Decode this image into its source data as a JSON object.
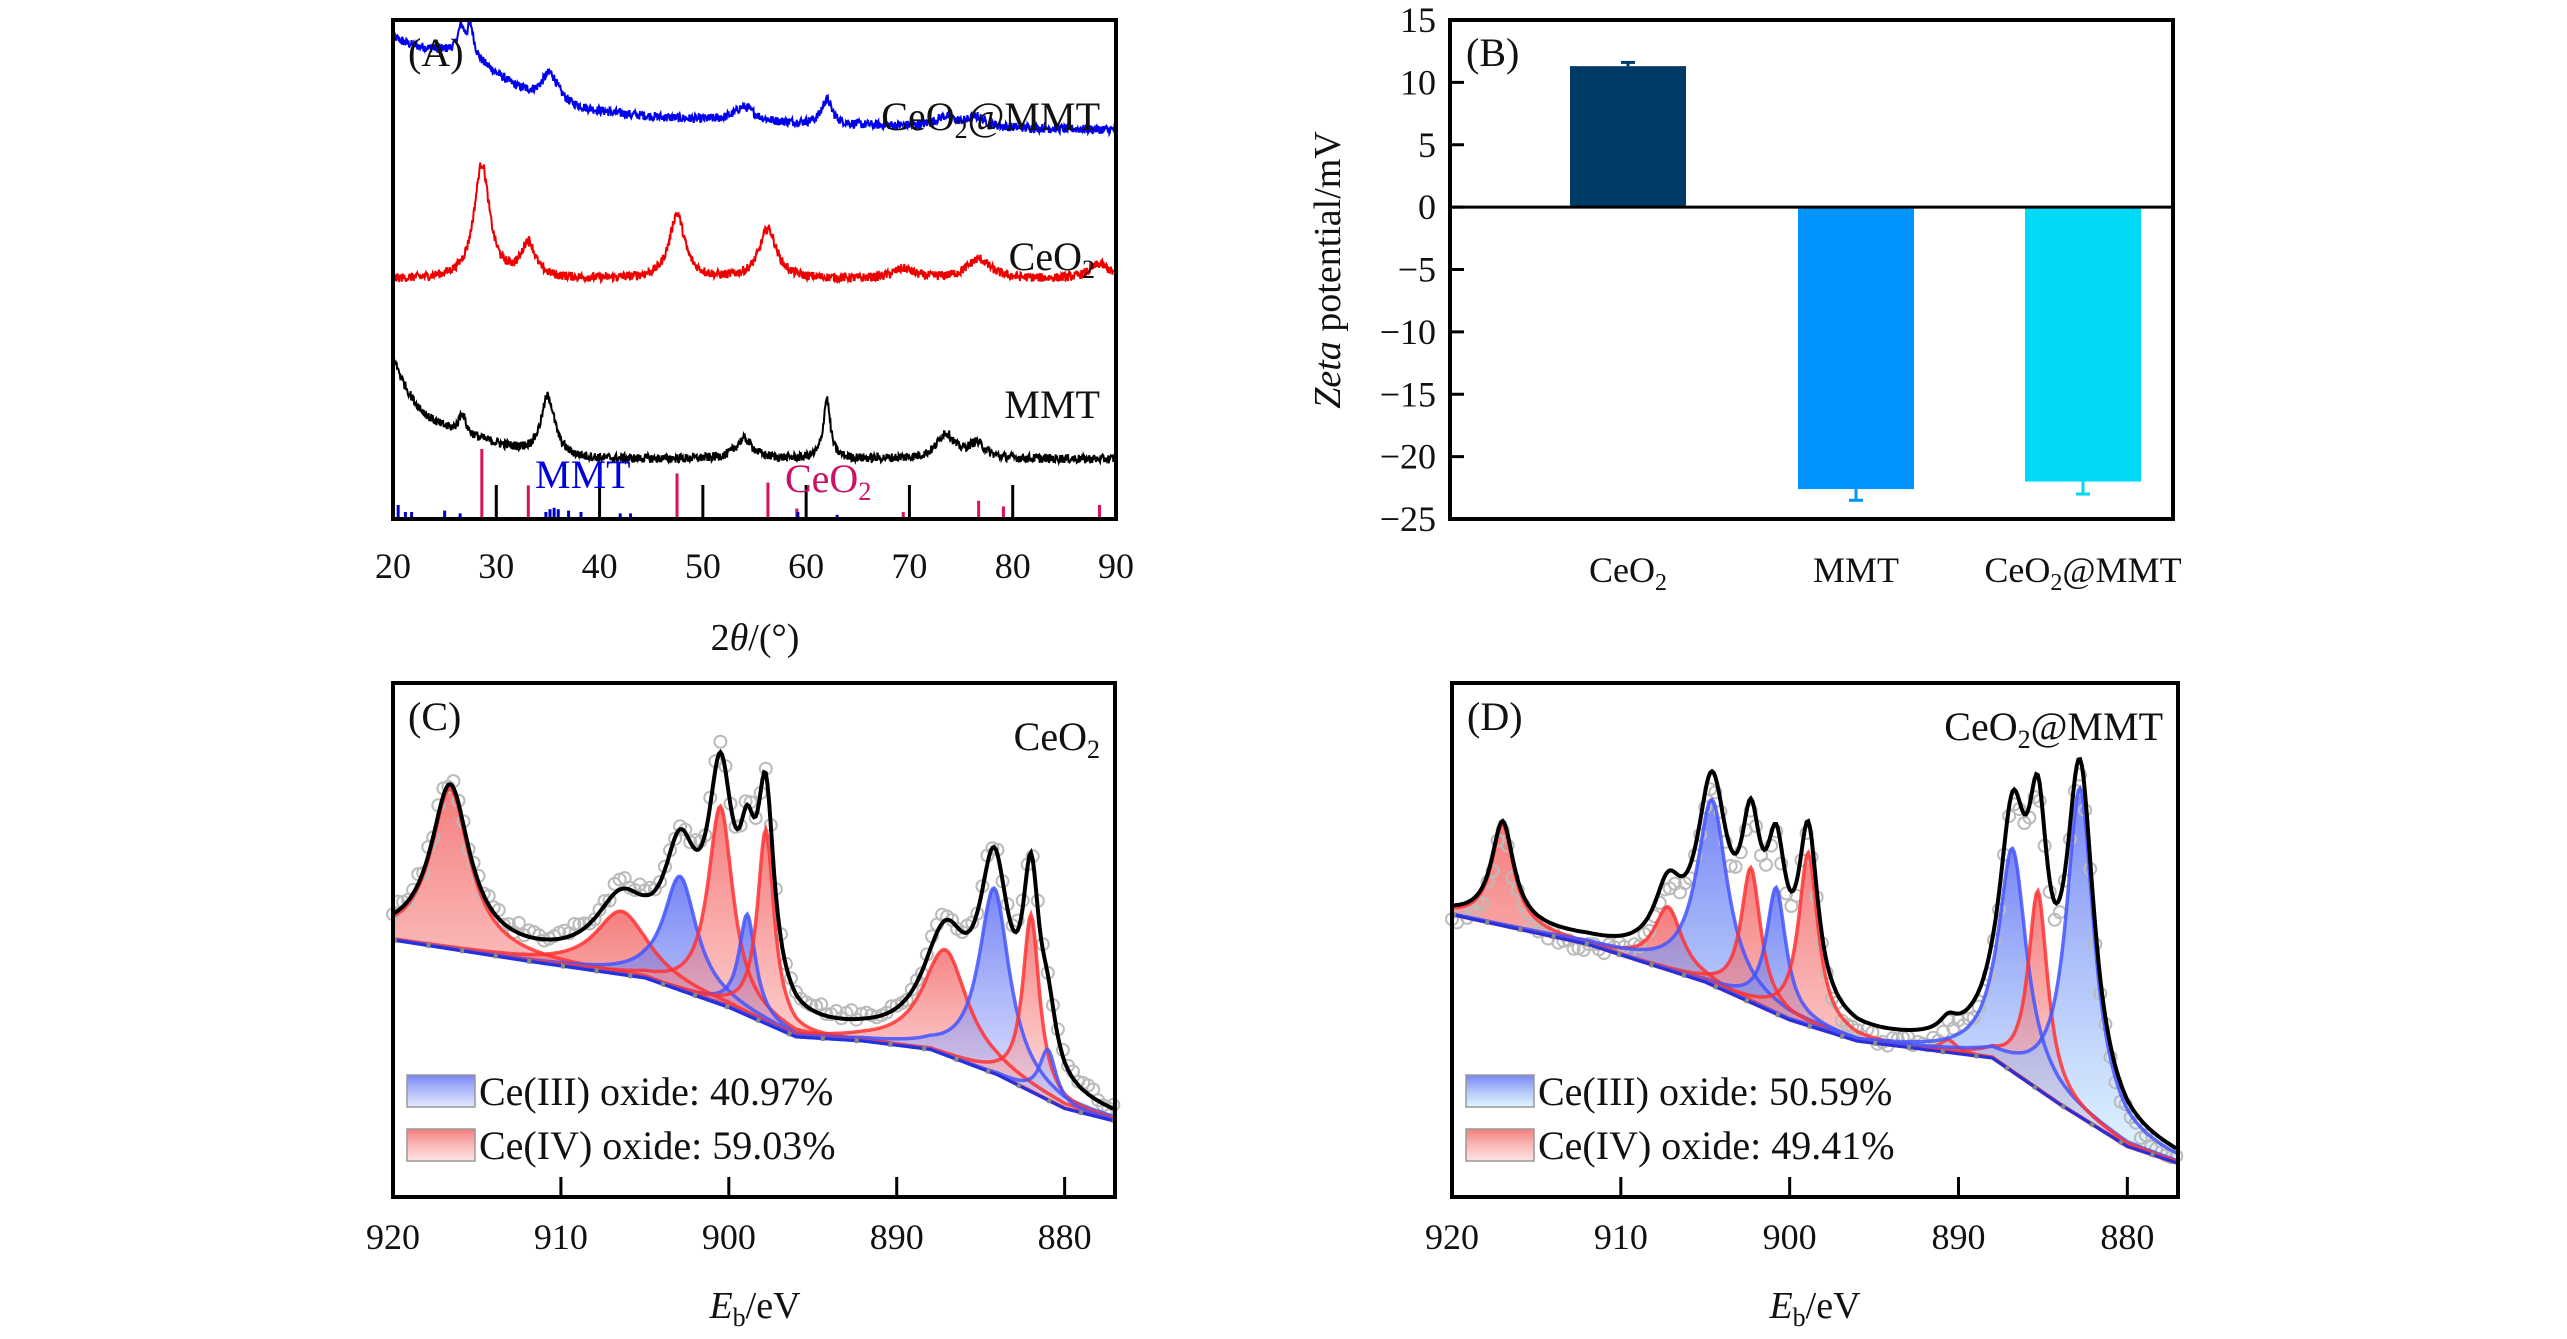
{
  "figure": {
    "panels": [
      "(A)",
      "(B)",
      "(C)",
      "(D)"
    ]
  },
  "chart_data": [
    {
      "id": "A",
      "type": "line",
      "panel_label": "(A)",
      "title": "",
      "xlabel": "2θ/(°)",
      "xlabel_parts": {
        "pre": "2",
        "italic": "θ",
        "post": "/(°)"
      },
      "ylabel": "",
      "xlim": [
        20,
        90
      ],
      "xticks": [
        20,
        30,
        40,
        50,
        60,
        70,
        80,
        90
      ],
      "grid": false,
      "series": [
        {
          "name": "CeO2@MMT",
          "label_main": "CeO",
          "label_sub": "2",
          "label_tail": "@MMT",
          "color": "#0000ee",
          "offset": 0.8,
          "peaks": [
            {
              "x": 26.6,
              "h": 0.05,
              "w": 0.4
            },
            {
              "x": 27.5,
              "h": 0.06,
              "w": 0.4
            },
            {
              "x": 35.2,
              "h": 0.06,
              "w": 1.0
            },
            {
              "x": 54.0,
              "h": 0.03,
              "w": 1.2
            },
            {
              "x": 62.0,
              "h": 0.05,
              "w": 0.6
            },
            {
              "x": 73.5,
              "h": 0.02,
              "w": 1.2
            },
            {
              "x": 76.5,
              "h": 0.02,
              "w": 1.0
            }
          ],
          "background": {
            "start": 0.16,
            "decay": 10
          }
        },
        {
          "name": "CeO2",
          "label_main": "CeO",
          "label_sub": "2",
          "label_tail": "",
          "color": "#ee0000",
          "offset": 0.48,
          "peaks": [
            {
              "x": 28.6,
              "h": 0.23,
              "w": 0.9
            },
            {
              "x": 33.1,
              "h": 0.07,
              "w": 0.8
            },
            {
              "x": 47.5,
              "h": 0.13,
              "w": 0.9
            },
            {
              "x": 56.3,
              "h": 0.1,
              "w": 1.0
            },
            {
              "x": 69.4,
              "h": 0.02,
              "w": 1.2
            },
            {
              "x": 76.7,
              "h": 0.04,
              "w": 1.4
            },
            {
              "x": 88.4,
              "h": 0.03,
              "w": 1.2
            }
          ],
          "background": {
            "start": 0.0,
            "decay": 10
          }
        },
        {
          "name": "MMT",
          "label_main": "MMT",
          "label_sub": "",
          "label_tail": "",
          "color": "#000000",
          "offset": 0.12,
          "peaks": [
            {
              "x": 26.7,
              "h": 0.04,
              "w": 0.4
            },
            {
              "x": 35.0,
              "h": 0.12,
              "w": 0.8
            },
            {
              "x": 54.0,
              "h": 0.04,
              "w": 1.0
            },
            {
              "x": 62.0,
              "h": 0.12,
              "w": 0.4
            },
            {
              "x": 73.5,
              "h": 0.05,
              "w": 1.0
            },
            {
              "x": 76.5,
              "h": 0.03,
              "w": 1.0
            }
          ],
          "background": {
            "start": 0.2,
            "decay": 3
          }
        }
      ],
      "reference_sticks": {
        "MMT": {
          "label": "MMT",
          "color": "#0000cc",
          "x": [
            20.5,
            21.2,
            21.8,
            25.0,
            26.5,
            34.8,
            35.2,
            35.6,
            36.0,
            37.0,
            38.2,
            42.0,
            43.0,
            59.2,
            63.0
          ],
          "h": [
            0.2,
            0.1,
            0.1,
            0.12,
            0.08,
            0.1,
            0.14,
            0.16,
            0.14,
            0.12,
            0.1,
            0.08,
            0.08,
            0.1,
            0.06
          ]
        },
        "CeO2": {
          "label_main": "CeO",
          "label_sub": "2",
          "color": "#dd1155",
          "x": [
            28.6,
            33.1,
            47.5,
            56.3,
            59.1,
            69.4,
            76.7,
            79.1,
            88.4
          ],
          "h": [
            1.0,
            0.48,
            0.65,
            0.52,
            0.15,
            0.1,
            0.26,
            0.18,
            0.2
          ]
        },
        "ticks_black": [
          30,
          40,
          50,
          60,
          70,
          80
        ]
      }
    },
    {
      "id": "B",
      "type": "bar",
      "panel_label": "(B)",
      "title": "",
      "xlabel": "",
      "ylabel": "Zeta potential/mV",
      "ylabel_parts": {
        "italic": "Zeta",
        "post": " potential/mV"
      },
      "ylim": [
        -25,
        15
      ],
      "yticks": [
        15,
        10,
        5,
        0,
        -5,
        -10,
        -15,
        -20,
        -25
      ],
      "ytick_labels": [
        "15",
        "10",
        "5",
        "0",
        "−5",
        "−10",
        "−15",
        "−20",
        "−25"
      ],
      "grid": false,
      "categories": [
        {
          "main": "CeO",
          "sub": "2",
          "tail": ""
        },
        {
          "main": "MMT",
          "sub": "",
          "tail": ""
        },
        {
          "main": "CeO",
          "sub": "2",
          "tail": "@MMT"
        }
      ],
      "category_names": [
        "CeO2",
        "MMT",
        "CeO2@MMT"
      ],
      "values": [
        11.3,
        -22.6,
        -22.0
      ],
      "errors": [
        0.3,
        0.9,
        1.0
      ],
      "colors": [
        "#003a66",
        "#0095ff",
        "#00daf6"
      ]
    },
    {
      "id": "C",
      "type": "area",
      "panel_label": "(C)",
      "sample_label": {
        "main": "CeO",
        "sub": "2",
        "tail": ""
      },
      "xlabel": "Eb/eV",
      "xlabel_parts": {
        "italic": "E",
        "sub": "b",
        "post": "/eV"
      },
      "xlim": [
        920,
        877
      ],
      "xticks": [
        920,
        910,
        900,
        890,
        880
      ],
      "grid": false,
      "baseline": [
        [
          920,
          0.36
        ],
        [
          912,
          0.31
        ],
        [
          905,
          0.27
        ],
        [
          900,
          0.2
        ],
        [
          896,
          0.13
        ],
        [
          892,
          0.12
        ],
        [
          888,
          0.1
        ],
        [
          884,
          0.04
        ],
        [
          880,
          -0.04
        ],
        [
          877,
          -0.07
        ]
      ],
      "components": [
        {
          "type": "Ce(IV)",
          "center": 916.6,
          "height": 0.38,
          "width": 1.4
        },
        {
          "type": "Ce(IV)",
          "center": 906.4,
          "height": 0.15,
          "width": 1.9
        },
        {
          "type": "Ce(III)",
          "center": 902.9,
          "height": 0.27,
          "width": 1.2
        },
        {
          "type": "Ce(IV)",
          "center": 900.5,
          "height": 0.47,
          "width": 0.9
        },
        {
          "type": "Ce(III)",
          "center": 898.9,
          "height": 0.24,
          "width": 0.6
        },
        {
          "type": "Ce(IV)",
          "center": 897.8,
          "height": 0.46,
          "width": 0.6
        },
        {
          "type": "Ce(IV)",
          "center": 887.1,
          "height": 0.25,
          "width": 1.6
        },
        {
          "type": "Ce(III)",
          "center": 884.2,
          "height": 0.44,
          "width": 1.1
        },
        {
          "type": "Ce(IV)",
          "center": 882.0,
          "height": 0.42,
          "width": 0.6
        },
        {
          "type": "Ce(III)",
          "center": 881.0,
          "height": 0.12,
          "width": 0.6
        }
      ],
      "legend": [
        {
          "label": "Ce(III) oxide: 40.97%",
          "color": "#4455ff",
          "fill_top": "#6a78f4",
          "fill_bottom": "#dde4ff"
        },
        {
          "label": "Ce(IV) oxide: 59.03%",
          "color": "#ff3333",
          "fill_top": "#f26a6a",
          "fill_bottom": "#ffe0e0"
        }
      ],
      "legend_position": "bottom-left",
      "percentages": {
        "Ce(III)": 40.97,
        "Ce(IV)": 59.03
      }
    },
    {
      "id": "D",
      "type": "area",
      "panel_label": "(D)",
      "sample_label": {
        "main": "CeO",
        "sub": "2",
        "tail": "@MMT"
      },
      "xlabel": "Eb/eV",
      "xlabel_parts": {
        "italic": "E",
        "sub": "b",
        "post": "/eV"
      },
      "xlim": [
        920,
        877
      ],
      "xticks": [
        920,
        910,
        900,
        890,
        880
      ],
      "grid": false,
      "baseline": [
        [
          920,
          0.42
        ],
        [
          912,
          0.35
        ],
        [
          905,
          0.26
        ],
        [
          900,
          0.17
        ],
        [
          896,
          0.12
        ],
        [
          892,
          0.1
        ],
        [
          888,
          0.08
        ],
        [
          884,
          -0.03
        ],
        [
          880,
          -0.13
        ],
        [
          877,
          -0.17
        ]
      ],
      "components": [
        {
          "type": "Ce(IV)",
          "center": 917.0,
          "height": 0.24,
          "width": 0.8
        },
        {
          "type": "Ce(IV)",
          "center": 907.2,
          "height": 0.15,
          "width": 1.0
        },
        {
          "type": "Ce(III)",
          "center": 904.6,
          "height": 0.44,
          "width": 1.1
        },
        {
          "type": "Ce(IV)",
          "center": 902.3,
          "height": 0.32,
          "width": 0.7
        },
        {
          "type": "Ce(III)",
          "center": 900.8,
          "height": 0.3,
          "width": 0.7
        },
        {
          "type": "Ce(IV)",
          "center": 898.9,
          "height": 0.41,
          "width": 0.7
        },
        {
          "type": "Ce(IV)",
          "center": 890.6,
          "height": 0.03,
          "width": 0.6
        },
        {
          "type": "Ce(III)",
          "center": 886.8,
          "height": 0.53,
          "width": 1.0
        },
        {
          "type": "Ce(IV)",
          "center": 885.3,
          "height": 0.47,
          "width": 0.7
        },
        {
          "type": "Ce(III)",
          "center": 882.8,
          "height": 0.78,
          "width": 1.0
        }
      ],
      "legend": [
        {
          "label": "Ce(III) oxide: 50.59%",
          "color": "#4455ff",
          "fill_top": "#6a78f4",
          "fill_bottom": "#dbf4ff"
        },
        {
          "label": "Ce(IV) oxide: 49.41%",
          "color": "#ff3333",
          "fill_top": "#f26a6a",
          "fill_bottom": "#ffe0e0"
        }
      ],
      "legend_position": "bottom-left",
      "percentages": {
        "Ce(III)": 50.59,
        "Ce(IV)": 49.41
      }
    }
  ]
}
